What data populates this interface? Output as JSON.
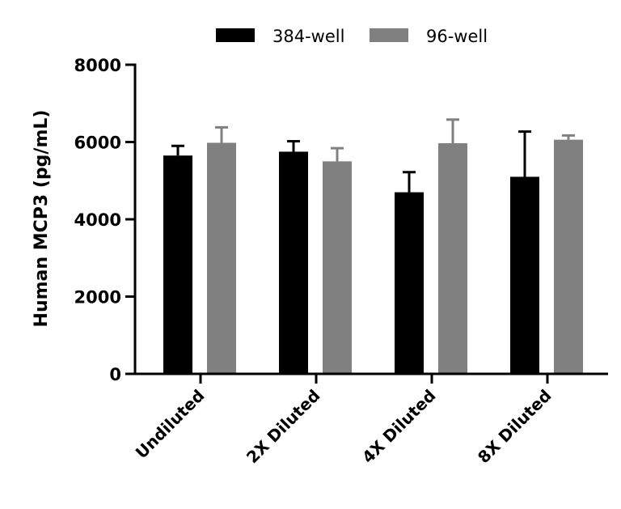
{
  "chart_data": {
    "type": "bar",
    "title": "",
    "xlabel": "",
    "ylabel": "Human MCP3 (pg/mL)",
    "ylim": [
      0,
      8000
    ],
    "yticks": [
      0,
      2000,
      4000,
      6000,
      8000
    ],
    "grid": false,
    "legend_position": "top",
    "categories": [
      "Undiluted",
      "2X Diluted",
      "4X Diluted",
      "8X Diluted"
    ],
    "series": [
      {
        "name": "384-well",
        "color": "#000000",
        "values": [
          5650,
          5750,
          4700,
          5100
        ],
        "errors": [
          250,
          270,
          520,
          1170
        ]
      },
      {
        "name": "96-well",
        "color": "#808080",
        "values": [
          5980,
          5500,
          5970,
          6060
        ],
        "errors": [
          400,
          340,
          610,
          110
        ]
      }
    ]
  }
}
